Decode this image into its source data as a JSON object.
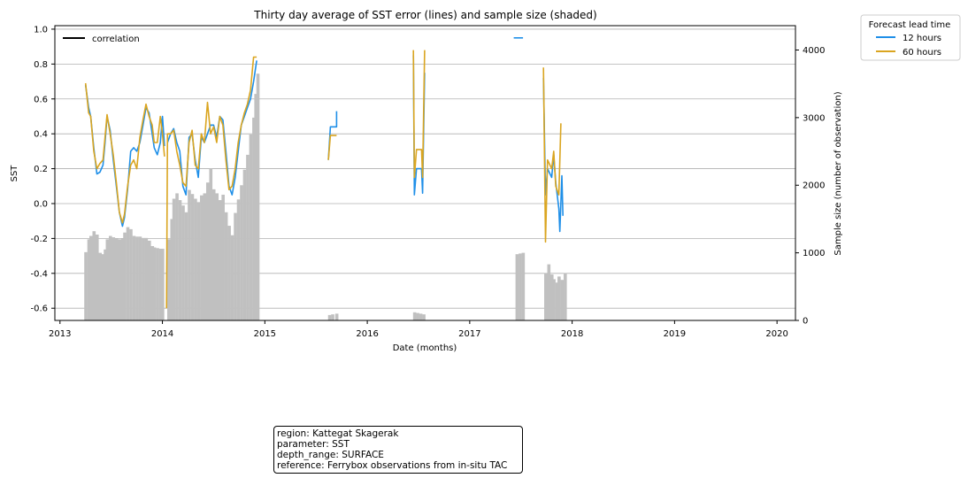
{
  "chart_data": {
    "type": "line",
    "title": "Thirty day average of SST error (lines) and sample size (shaded)",
    "xlabel": "Date (months)",
    "ylabel": "SST",
    "y2label": "Sample size (number of observation)",
    "xlim": [
      2012.95,
      2020.18
    ],
    "ylim": [
      -0.67,
      1.02
    ],
    "y2lim": [
      0,
      4360
    ],
    "x_ticks": [
      2013,
      2014,
      2015,
      2016,
      2017,
      2018,
      2019,
      2020
    ],
    "x_tick_labels": [
      "2013",
      "2014",
      "2015",
      "2016",
      "2017",
      "2018",
      "2019",
      "2020"
    ],
    "y_ticks": [
      -0.6,
      -0.4,
      -0.2,
      0.0,
      0.2,
      0.4,
      0.6,
      0.8,
      1.0
    ],
    "y_tick_labels": [
      "-0.6",
      "-0.4",
      "-0.2",
      "0.0",
      "0.2",
      "0.4",
      "0.6",
      "0.8",
      "1.0"
    ],
    "y2_ticks": [
      0,
      1000,
      2000,
      3000,
      4000
    ],
    "y2_tick_labels": [
      "0",
      "1000",
      "2000",
      "3000",
      "4000"
    ],
    "grid": "horizontal",
    "legend_left": {
      "placement": "top-left",
      "entries": [
        {
          "label": "correlation",
          "color": "#000000"
        }
      ]
    },
    "legend_right": {
      "placement": "outside-top-right",
      "title": "Forecast lead time",
      "entries": [
        {
          "label": "12 hours",
          "color": "#1f8fe8"
        },
        {
          "label": "60 hours",
          "color": "#daa520"
        }
      ]
    },
    "series": [
      {
        "name": "12 hours",
        "color": "#1f8fe8",
        "segments": [
          [
            [
              2013.25,
              0.68
            ],
            [
              2013.28,
              0.55
            ],
            [
              2013.3,
              0.5
            ],
            [
              2013.33,
              0.32
            ],
            [
              2013.36,
              0.17
            ],
            [
              2013.39,
              0.18
            ],
            [
              2013.42,
              0.22
            ],
            [
              2013.44,
              0.35
            ],
            [
              2013.46,
              0.5
            ],
            [
              2013.49,
              0.42
            ],
            [
              2013.52,
              0.25
            ],
            [
              2013.55,
              0.1
            ],
            [
              2013.58,
              -0.05
            ],
            [
              2013.61,
              -0.13
            ],
            [
              2013.63,
              -0.08
            ],
            [
              2013.66,
              0.08
            ],
            [
              2013.69,
              0.3
            ],
            [
              2013.72,
              0.32
            ],
            [
              2013.75,
              0.3
            ],
            [
              2013.78,
              0.35
            ],
            [
              2013.81,
              0.45
            ],
            [
              2013.84,
              0.55
            ],
            [
              2013.87,
              0.52
            ],
            [
              2013.9,
              0.4
            ],
            [
              2013.92,
              0.32
            ],
            [
              2013.95,
              0.28
            ],
            [
              2013.98,
              0.35
            ],
            [
              2014.0,
              0.5
            ],
            [
              2014.02,
              0.33
            ]
          ],
          [
            [
              2014.05,
              0.35
            ],
            [
              2014.08,
              0.4
            ],
            [
              2014.11,
              0.43
            ],
            [
              2014.14,
              0.35
            ],
            [
              2014.17,
              0.3
            ],
            [
              2014.2,
              0.1
            ],
            [
              2014.23,
              0.05
            ],
            [
              2014.26,
              0.38
            ],
            [
              2014.29,
              0.4
            ],
            [
              2014.32,
              0.25
            ],
            [
              2014.35,
              0.15
            ],
            [
              2014.38,
              0.38
            ],
            [
              2014.41,
              0.35
            ],
            [
              2014.44,
              0.4
            ],
            [
              2014.47,
              0.45
            ],
            [
              2014.5,
              0.45
            ],
            [
              2014.53,
              0.38
            ],
            [
              2014.56,
              0.5
            ],
            [
              2014.59,
              0.48
            ],
            [
              2014.62,
              0.3
            ],
            [
              2014.65,
              0.1
            ],
            [
              2014.68,
              0.05
            ],
            [
              2014.71,
              0.15
            ],
            [
              2014.74,
              0.3
            ],
            [
              2014.77,
              0.45
            ],
            [
              2014.8,
              0.5
            ],
            [
              2014.83,
              0.55
            ],
            [
              2014.86,
              0.6
            ],
            [
              2014.89,
              0.7
            ],
            [
              2014.92,
              0.82
            ]
          ],
          [
            [
              2015.62,
              0.25
            ],
            [
              2015.64,
              0.44
            ],
            [
              2015.7,
              0.44
            ],
            [
              2015.7,
              0.53
            ]
          ],
          [
            [
              2016.45,
              0.85
            ],
            [
              2016.46,
              0.05
            ],
            [
              2016.48,
              0.2
            ],
            [
              2016.53,
              0.2
            ],
            [
              2016.54,
              0.06
            ],
            [
              2016.56,
              0.75
            ]
          ],
          [
            [
              2017.43,
              0.95
            ],
            [
              2017.52,
              0.95
            ]
          ],
          [
            [
              2017.72,
              0.72
            ],
            [
              2017.74,
              0.05
            ],
            [
              2017.76,
              0.2
            ],
            [
              2017.8,
              0.15
            ],
            [
              2017.82,
              0.28
            ],
            [
              2017.84,
              0.12
            ],
            [
              2017.87,
              -0.03
            ],
            [
              2017.88,
              -0.16
            ],
            [
              2017.9,
              0.16
            ],
            [
              2017.91,
              -0.07
            ]
          ]
        ]
      },
      {
        "name": "60 hours",
        "color": "#daa520",
        "segments": [
          [
            [
              2013.25,
              0.69
            ],
            [
              2013.28,
              0.52
            ],
            [
              2013.3,
              0.5
            ],
            [
              2013.33,
              0.3
            ],
            [
              2013.36,
              0.2
            ],
            [
              2013.39,
              0.23
            ],
            [
              2013.42,
              0.25
            ],
            [
              2013.44,
              0.38
            ],
            [
              2013.46,
              0.51
            ],
            [
              2013.49,
              0.4
            ],
            [
              2013.52,
              0.28
            ],
            [
              2013.55,
              0.12
            ],
            [
              2013.58,
              -0.05
            ],
            [
              2013.61,
              -0.11
            ],
            [
              2013.63,
              -0.06
            ],
            [
              2013.66,
              0.1
            ],
            [
              2013.69,
              0.22
            ],
            [
              2013.72,
              0.25
            ],
            [
              2013.75,
              0.2
            ],
            [
              2013.78,
              0.38
            ],
            [
              2013.81,
              0.48
            ],
            [
              2013.84,
              0.57
            ],
            [
              2013.87,
              0.5
            ],
            [
              2013.9,
              0.45
            ],
            [
              2013.92,
              0.35
            ],
            [
              2013.95,
              0.35
            ],
            [
              2013.98,
              0.5
            ],
            [
              2014.0,
              0.4
            ],
            [
              2014.02,
              0.27
            ]
          ],
          [
            [
              2014.04,
              -0.6
            ],
            [
              2014.05,
              0.4
            ],
            [
              2014.08,
              0.4
            ],
            [
              2014.11,
              0.42
            ],
            [
              2014.14,
              0.3
            ],
            [
              2014.17,
              0.22
            ],
            [
              2014.2,
              0.12
            ],
            [
              2014.23,
              0.1
            ],
            [
              2014.26,
              0.35
            ],
            [
              2014.29,
              0.42
            ],
            [
              2014.32,
              0.22
            ],
            [
              2014.35,
              0.2
            ],
            [
              2014.38,
              0.4
            ],
            [
              2014.41,
              0.35
            ],
            [
              2014.44,
              0.58
            ],
            [
              2014.47,
              0.4
            ],
            [
              2014.5,
              0.44
            ],
            [
              2014.53,
              0.35
            ],
            [
              2014.56,
              0.5
            ],
            [
              2014.59,
              0.45
            ],
            [
              2014.62,
              0.25
            ],
            [
              2014.65,
              0.08
            ],
            [
              2014.68,
              0.1
            ],
            [
              2014.71,
              0.2
            ],
            [
              2014.74,
              0.35
            ],
            [
              2014.77,
              0.45
            ],
            [
              2014.8,
              0.52
            ],
            [
              2014.83,
              0.57
            ],
            [
              2014.86,
              0.65
            ],
            [
              2014.89,
              0.84
            ],
            [
              2014.92,
              0.84
            ]
          ],
          [
            [
              2015.62,
              0.25
            ],
            [
              2015.64,
              0.39
            ],
            [
              2015.7,
              0.39
            ]
          ],
          [
            [
              2016.45,
              0.88
            ],
            [
              2016.46,
              0.15
            ],
            [
              2016.48,
              0.31
            ],
            [
              2016.53,
              0.31
            ],
            [
              2016.54,
              0.15
            ],
            [
              2016.56,
              0.88
            ]
          ],
          [
            [
              2017.72,
              0.78
            ],
            [
              2017.74,
              -0.22
            ],
            [
              2017.76,
              0.25
            ],
            [
              2017.8,
              0.2
            ],
            [
              2017.82,
              0.3
            ],
            [
              2017.84,
              0.1
            ],
            [
              2017.87,
              0.05
            ],
            [
              2017.89,
              0.46
            ]
          ]
        ]
      }
    ],
    "sample_size": {
      "name": "sample size",
      "color": "#c0c0c0",
      "bar_width": 0.026,
      "x": [
        2013.25,
        2013.28,
        2013.3,
        2013.33,
        2013.36,
        2013.39,
        2013.42,
        2013.44,
        2013.46,
        2013.49,
        2013.52,
        2013.55,
        2013.58,
        2013.61,
        2013.63,
        2013.66,
        2013.69,
        2013.72,
        2013.75,
        2013.78,
        2013.81,
        2013.84,
        2013.87,
        2013.9,
        2013.92,
        2013.95,
        2013.98,
        2014.0,
        2014.06,
        2014.09,
        2014.11,
        2014.14,
        2014.17,
        2014.2,
        2014.23,
        2014.26,
        2014.29,
        2014.32,
        2014.35,
        2014.38,
        2014.41,
        2014.44,
        2014.47,
        2014.5,
        2014.53,
        2014.56,
        2014.59,
        2014.62,
        2014.65,
        2014.68,
        2014.71,
        2014.74,
        2014.77,
        2014.8,
        2014.83,
        2014.86,
        2014.89,
        2014.92,
        2015.63,
        2015.66,
        2015.7,
        2016.46,
        2016.49,
        2016.52,
        2016.55,
        2017.46,
        2017.49,
        2017.52,
        2017.74,
        2017.77,
        2017.8,
        2017.82,
        2017.85,
        2017.87,
        2017.9,
        2017.93
      ],
      "values": [
        1010,
        1200,
        1250,
        1320,
        1270,
        1000,
        980,
        1050,
        1200,
        1250,
        1230,
        1210,
        1200,
        1210,
        1300,
        1380,
        1350,
        1250,
        1240,
        1240,
        1220,
        1220,
        1180,
        1100,
        1080,
        1070,
        1060,
        1060,
        1200,
        1500,
        1800,
        1880,
        1780,
        1700,
        1600,
        1930,
        1870,
        1800,
        1750,
        1850,
        1880,
        2040,
        2240,
        1940,
        1880,
        1780,
        1860,
        1600,
        1400,
        1260,
        1590,
        1790,
        2000,
        2230,
        2450,
        2750,
        3000,
        3200,
        80,
        90,
        100,
        120,
        110,
        100,
        90,
        980,
        990,
        1000,
        700,
        830,
        680,
        610,
        560,
        650,
        600,
        700
      ],
      "extra_bars": [
        {
          "x": 2014.91,
          "values": 3350
        },
        {
          "x": 2014.93,
          "values": 3650
        }
      ]
    }
  },
  "info_box": {
    "lines": [
      "region: Kattegat Skagerak",
      "parameter: SST",
      "depth_range: SURFACE",
      "reference: Ferrybox observations from in-situ TAC"
    ]
  }
}
